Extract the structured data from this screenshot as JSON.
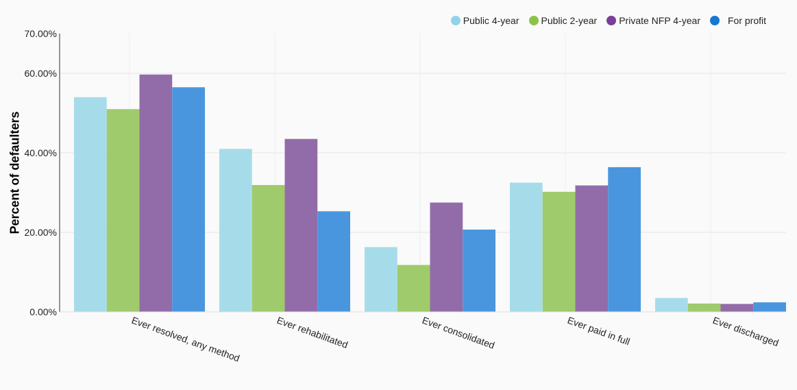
{
  "chart_data": {
    "type": "bar",
    "title": "",
    "xlabel": "",
    "ylabel": "Percent of defaulters",
    "ylim": [
      0,
      70
    ],
    "yticks": [
      "0.00%",
      "20.00%",
      "40.00%",
      "60.00%",
      "70.00%"
    ],
    "ytick_values": [
      0,
      20,
      40,
      60,
      70
    ],
    "grid": true,
    "legend_position": "top-right",
    "categories": [
      "Ever resolved, any method",
      "Ever rehabilitated",
      "Ever consolidated",
      "Ever paid in full",
      "Ever discharged"
    ],
    "series": [
      {
        "name": "Public 4-year",
        "color": "#a6dcea",
        "legend_color": "#8fd4ea",
        "values": [
          54.0,
          41.0,
          16.3,
          32.5,
          3.5
        ]
      },
      {
        "name": "Public 2-year",
        "color": "#a0cb6c",
        "legend_color": "#8bc34a",
        "values": [
          51.0,
          31.9,
          11.8,
          30.2,
          2.1
        ]
      },
      {
        "name": "Private NFP 4-year",
        "color": "#926ca8",
        "legend_color": "#7b3f99",
        "values": [
          59.7,
          43.5,
          27.5,
          31.8,
          2.0
        ]
      },
      {
        "name": "For profit",
        "color": "#4a96de",
        "legend_color": "#1976d2",
        "values": [
          56.5,
          25.3,
          20.7,
          36.4,
          2.4
        ]
      }
    ]
  }
}
